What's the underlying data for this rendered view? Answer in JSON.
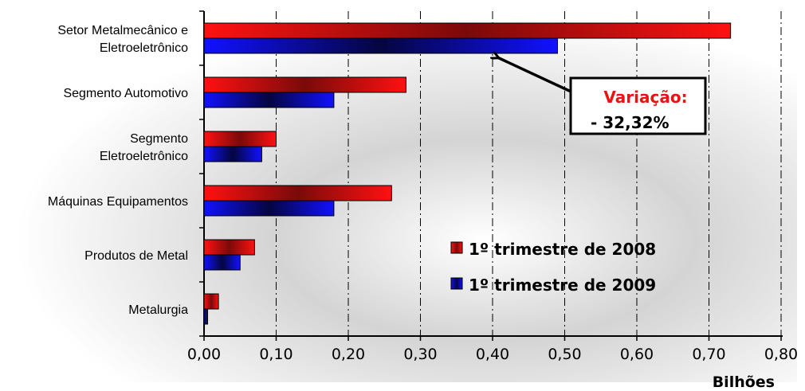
{
  "chart_data": {
    "type": "bar",
    "orientation": "horizontal",
    "categories": [
      "Setor Metalmecânico e Eletroeletrônico",
      "Segmento Automotivo",
      "Segmento Eletroeletrônico",
      "Máquinas Equipamentos",
      "Produtos de Metal",
      "Metalurgia"
    ],
    "category_lines": [
      [
        "Setor Metalmecânico e",
        "Eletroeletrônico"
      ],
      [
        "Segmento Automotivo"
      ],
      [
        "Segmento",
        "Eletroeletrônico"
      ],
      [
        "Máquinas Equipamentos"
      ],
      [
        "Produtos de Metal"
      ],
      [
        "Metalurgia"
      ]
    ],
    "series": [
      {
        "name": "1º trimestre de 2008",
        "color": "#ff1111",
        "dark": "#7a0a0a",
        "values": [
          0.73,
          0.28,
          0.1,
          0.26,
          0.07,
          0.02
        ]
      },
      {
        "name": "1º trimestre de 2009",
        "color": "#1111ff",
        "dark": "#050540",
        "values": [
          0.49,
          0.18,
          0.08,
          0.18,
          0.05,
          0.005
        ]
      }
    ],
    "xlim": [
      0,
      0.8
    ],
    "xticks": [
      "0,00",
      "0,10",
      "0,20",
      "0,30",
      "0,40",
      "0,50",
      "0,60",
      "0,70",
      "0,80"
    ],
    "xunit": "Bilhões",
    "grid": "vertical dash-dot",
    "legend_position": "bottom-right",
    "annotation": {
      "title": "Variação:",
      "value": "- 32,32%",
      "points_to": "Setor Metalmecânico e Eletroeletrônico / 1º trimestre de 2009"
    }
  }
}
